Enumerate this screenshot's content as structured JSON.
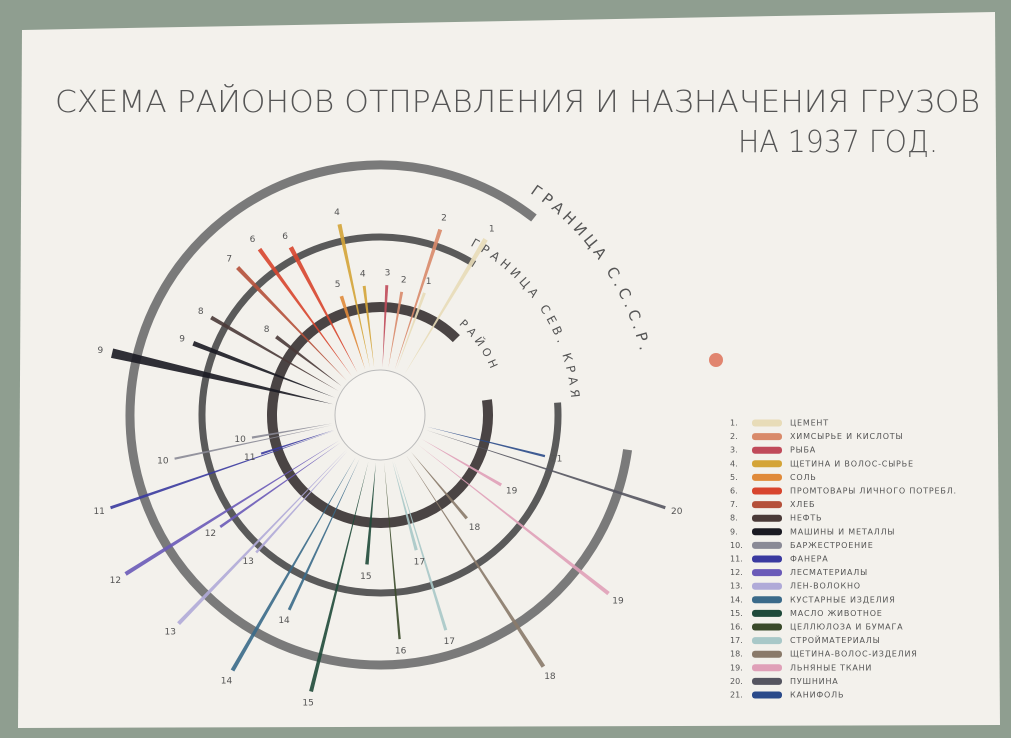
{
  "header": {
    "title": "СХЕМА РАЙОНОВ ОТПРАВЛЕНИЯ И НАЗНАЧЕНИЯ ГРУЗОВ",
    "subtitle": "НА 1937 ГОД."
  },
  "rings": {
    "outer": "ГРАНИЦА С.С.С.Р.",
    "middle": "ГРАНИЦА СЕВ. КРАЯ",
    "inner": "РАЙОН"
  },
  "rays": [
    "9",
    "9",
    "8",
    "7",
    "6",
    "6",
    "4",
    "2",
    "1",
    "8",
    "5",
    "4",
    "3",
    "2",
    "1",
    "10",
    "11",
    "12",
    "13",
    "14",
    "15",
    "16",
    "17",
    "18",
    "19",
    "20",
    "21",
    "10",
    "11",
    "12",
    "13",
    "14",
    "15",
    "17",
    "18",
    "19"
  ],
  "legend": [
    {
      "number": "1.",
      "label": "ЦЕМЕНТ",
      "color": "#e8dcb8"
    },
    {
      "number": "2.",
      "label": "ХИМСЫРЬЕ И КИСЛОТЫ",
      "color": "#d98a6a"
    },
    {
      "number": "3.",
      "label": "РЫБА",
      "color": "#c04a5a"
    },
    {
      "number": "4.",
      "label": "ЩЕТИНА И ВОЛОС-СЫРЬЕ",
      "color": "#d4a437"
    },
    {
      "number": "5.",
      "label": "СОЛЬ",
      "color": "#e08a3a"
    },
    {
      "number": "6.",
      "label": "ПРОМТОВАРЫ ЛИЧНОГО ПОТРЕБЛ.",
      "color": "#d8452e"
    },
    {
      "number": "7.",
      "label": "ХЛЕБ",
      "color": "#b5503a"
    },
    {
      "number": "8.",
      "label": "НЕФТЬ",
      "color": "#4a3a38"
    },
    {
      "number": "9.",
      "label": "МАШИНЫ И МЕТАЛЛЫ",
      "color": "#1a1a22"
    },
    {
      "number": "10.",
      "label": "БАРЖЕСТРОЕНИЕ",
      "color": "#8a8a96"
    },
    {
      "number": "11.",
      "label": "ФАНЕРА",
      "color": "#3a3aa0"
    },
    {
      "number": "12.",
      "label": "ЛЕСМАТЕРИАЛЫ",
      "color": "#6a5ab8"
    },
    {
      "number": "13.",
      "label": "ЛЕН-ВОЛОКНО",
      "color": "#b0aad8"
    },
    {
      "number": "14.",
      "label": "КУСТАРНЫЕ ИЗДЕЛИЯ",
      "color": "#3a6a8a"
    },
    {
      "number": "15.",
      "label": "МАСЛО ЖИВОТНОЕ",
      "color": "#1f4a3a"
    },
    {
      "number": "16.",
      "label": "ЦЕЛЛЮЛОЗА И БУМАГА",
      "color": "#3a4a2a"
    },
    {
      "number": "17.",
      "label": "СТРОЙМАТЕРИАЛЫ",
      "color": "#a8c8c8"
    },
    {
      "number": "18.",
      "label": "ЩЕТИНА-ВОЛОС-ИЗДЕЛИЯ",
      "color": "#8a7a6a"
    },
    {
      "number": "19.",
      "label": "ЛЬНЯНЫЕ ТКАНИ",
      "color": "#e0a0b8"
    },
    {
      "number": "20.",
      "label": "ПУШНИНА",
      "color": "#555560"
    },
    {
      "number": "21.",
      "label": "КАНИФОЛЬ",
      "color": "#2a4a8a"
    }
  ]
}
